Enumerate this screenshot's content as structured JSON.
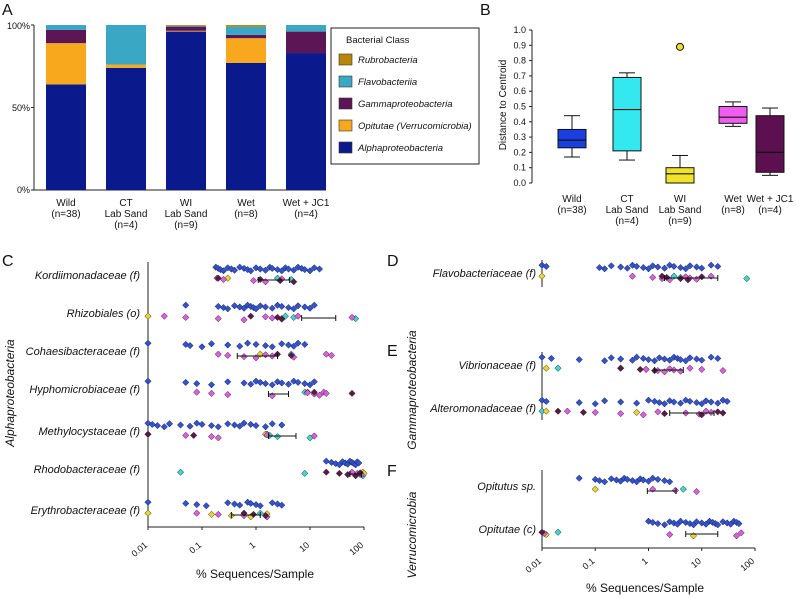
{
  "colors": {
    "Wild": "#1a3fe0",
    "CT Lab Sand": "#33e8ee",
    "WI Lab Sand": "#f2e22a",
    "Wet": "#f05cf0",
    "Wet + JC1": "#5c1050",
    "Rubrobacteria": "#b8860b",
    "Flavobacteriia": "#3aa8c4",
    "Gammaproteobacteria": "#5c1555",
    "Opitutae (Verrucomicrobia)": "#f8a81c",
    "Alphaproteobacteria": "#0a1a8c",
    "pointWild": "#2f52d8",
    "pointCT": "#3dd6d0",
    "pointWI": "#ecd628",
    "pointWet": "#e05ce0",
    "pointJC1": "#5a1a48"
  },
  "chart_data": [
    {
      "panel": "A",
      "type": "bar",
      "stacked": true,
      "categories": [
        "Wild\n(n=38)",
        "CT\nLab Sand\n(n=4)",
        "WI\nLab Sand\n(n=9)",
        "Wet\n(n=8)",
        "Wet + JC1\n(n=4)"
      ],
      "series": [
        {
          "name": "Alphaproteobacteria",
          "values": [
            64,
            74,
            96,
            77,
            83
          ]
        },
        {
          "name": "Opitutae (Verrucomicrobia)",
          "values": [
            25,
            2,
            0.5,
            15,
            0
          ]
        },
        {
          "name": "Gammaproteobacteria",
          "values": [
            8,
            0,
            2.5,
            2,
            13
          ]
        },
        {
          "name": "Flavobacteriia",
          "values": [
            3,
            24,
            0.5,
            5,
            4
          ]
        },
        {
          "name": "Rubrobacteria",
          "values": [
            0,
            0,
            0.5,
            1,
            0
          ]
        }
      ],
      "ylim": [
        0,
        100
      ],
      "yticks": [
        "0%",
        "50%",
        "100%"
      ],
      "legend_title": "Bacterial Class",
      "legend": [
        "Rubrobacteria",
        "Flavobacteriia",
        "Gammaproteobacteria",
        "Opitutae (Verrucomicrobia)",
        "Alphaproteobacteria"
      ],
      "legend_position": "right"
    },
    {
      "panel": "B",
      "type": "box",
      "ylabel": "Distance to Centroid",
      "ylim": [
        0,
        1.0
      ],
      "yticks": [
        "0.0",
        "0.1",
        "0.2",
        "0.3",
        "0.4",
        "0.5",
        "0.6",
        "0.7",
        "0.8",
        "0.9",
        "1.0"
      ],
      "categories": [
        "Wild\n(n=38)",
        "CT\nLab Sand\n(n=4)",
        "WI\nLab Sand\n(n=9)",
        "Wet\n(n=8)",
        "Wet + JC1\n(n=4)"
      ],
      "boxes": [
        {
          "min": 0.17,
          "q1": 0.23,
          "median": 0.28,
          "q3": 0.35,
          "max": 0.44,
          "outliers": []
        },
        {
          "min": 0.15,
          "q1": 0.21,
          "median": 0.48,
          "q3": 0.69,
          "max": 0.72,
          "outliers": []
        },
        {
          "min": 0.0,
          "q1": 0.0,
          "median": 0.06,
          "q3": 0.1,
          "max": 0.18,
          "outliers": [
            0.89
          ]
        },
        {
          "min": 0.37,
          "q1": 0.39,
          "median": 0.43,
          "q3": 0.5,
          "max": 0.53,
          "outliers": []
        },
        {
          "min": 0.05,
          "q1": 0.07,
          "median": 0.2,
          "q3": 0.44,
          "max": 0.49,
          "outliers": []
        }
      ]
    },
    {
      "panel": "C",
      "type": "scatter",
      "xscale": "log",
      "xlim": [
        0.01,
        100
      ],
      "xticks": [
        "0.01",
        "0.1",
        "1",
        "10",
        "100"
      ],
      "xlabel": "% Sequences/Sample",
      "side_label": "Alphaproteobacteria",
      "rows": [
        {
          "name": "Kordiimonadaceae (f)",
          "wild": [
            0.18,
            0.2,
            0.22,
            0.25,
            0.3,
            0.35,
            0.4,
            0.5,
            0.6,
            0.7,
            0.8,
            1,
            1.2,
            1.5,
            1.8,
            2,
            2.5,
            3,
            3.5,
            4,
            5,
            6,
            7,
            8,
            10,
            12,
            15
          ],
          "ct": [
            2.5,
            4.5
          ],
          "wi": [
            0.3
          ],
          "wet": [
            0.19,
            0.25,
            0.9,
            1.5,
            3
          ],
          "jc1": [
            0.2,
            1.2,
            2.8,
            5
          ],
          "errbar": [
            1.1,
            4.2
          ]
        },
        {
          "name": "Rhizobiales (o)",
          "wild": [
            0.05,
            0.2,
            0.25,
            0.3,
            0.4,
            0.5,
            0.6,
            0.7,
            0.8,
            0.9,
            1,
            1.2,
            1.5,
            2,
            2.5,
            3,
            4,
            5,
            6,
            8,
            10,
            12
          ],
          "ct": [
            3.5,
            5,
            70
          ],
          "wi": [
            0.01
          ],
          "wet": [
            0.02,
            0.05,
            0.2,
            0.6,
            1.5,
            2,
            3,
            6,
            60
          ],
          "jc1": [
            0.8,
            2.5,
            3
          ],
          "errbar": [
            7,
            30
          ]
        },
        {
          "name": "Cohaesibacteraceae (f)",
          "wild": [
            0.01,
            0.05,
            0.06,
            0.1,
            0.15,
            0.3,
            0.5,
            0.7,
            1,
            1.5,
            2,
            3,
            4,
            5,
            6,
            8
          ],
          "ct": [
            4.5
          ],
          "wi": [
            1.2
          ],
          "wet": [
            0.2,
            0.3,
            0.6,
            1,
            1.5,
            2,
            5,
            20,
            25
          ],
          "jc1": [
            2.5,
            4.5
          ],
          "errbar": [
            0.45,
            2.5
          ]
        },
        {
          "name": "Hyphomicrobiaceae (f)",
          "wild": [
            0.01,
            0.05,
            0.08,
            0.15,
            0.3,
            0.6,
            0.8,
            1,
            1.2,
            1.5,
            2,
            2.5,
            3,
            4,
            5,
            6,
            8,
            10,
            12
          ],
          "ct": [
            8
          ],
          "wi": [
            9
          ],
          "wet": [
            0.08,
            0.15,
            0.3,
            2,
            9,
            12,
            15,
            18,
            20
          ],
          "jc1": [
            12,
            60
          ],
          "errbar": [
            1.7,
            4
          ]
        },
        {
          "name": "Methylocystaceae (f)",
          "wild": [
            0.01,
            0.012,
            0.015,
            0.02,
            0.025,
            0.04,
            0.06,
            0.08,
            0.1,
            0.15,
            0.2,
            0.3,
            0.4,
            0.5,
            0.6,
            0.8,
            1,
            1.5,
            2,
            3
          ],
          "ct": [
            1.6,
            1.8,
            2.5,
            10
          ],
          "wi": [
            1.5
          ],
          "wet": [
            0.01,
            0.05,
            0.15,
            0.2,
            1.6,
            12
          ],
          "jc1": [
            0.01,
            0.07
          ],
          "errbar": [
            1.7,
            5.5
          ]
        },
        {
          "name": "Rhodobacteraceae (f)",
          "wild": [
            20,
            25,
            30,
            35,
            40,
            45,
            50,
            55,
            60,
            65,
            70,
            75,
            80
          ],
          "ct": [
            0.04,
            8,
            85,
            95
          ],
          "wi": [
            95,
            100
          ],
          "wet": [
            60,
            75,
            90
          ],
          "jc1": [
            20,
            35,
            50,
            70,
            85
          ],
          "errbar": [
            55,
            90
          ]
        },
        {
          "name": "Erythrobacteraceae (f)",
          "wild": [
            0.01,
            0.05,
            0.08,
            0.12,
            0.3,
            0.4,
            0.5,
            0.7,
            0.8,
            1,
            1.2,
            2,
            2.5,
            3
          ],
          "ct": [
            1.2
          ],
          "wi": [
            0.01,
            0.15,
            0.35,
            0.8,
            1.6
          ],
          "wet": [
            0.08,
            0.2,
            0.6,
            1.6
          ],
          "jc1": [
            0.6,
            0.9,
            1.5
          ],
          "errbar": [
            0.35,
            1.2
          ]
        }
      ]
    },
    {
      "panel": "D",
      "type": "scatter",
      "xscale": "log",
      "xlim": [
        0.01,
        100
      ],
      "side_label": "Gammaproteobacteria",
      "rows": [
        {
          "name": "Flavobacteriaceae (f)",
          "wild": [
            0.01,
            0.012,
            0.12,
            0.15,
            0.2,
            0.3,
            0.4,
            0.5,
            0.6,
            0.8,
            1,
            1.2,
            1.5,
            2,
            2.5,
            3,
            4,
            5,
            6,
            8,
            10,
            15,
            20
          ],
          "ct": [
            3,
            4,
            70
          ],
          "wi": [
            0.01
          ],
          "wet": [
            0.5,
            1.2,
            1.8,
            2.5,
            5,
            6,
            8,
            15
          ],
          "jc1": [
            1.8,
            2.2,
            4,
            5.5,
            10
          ],
          "errbar": [
            2,
            20
          ]
        }
      ]
    },
    {
      "panel": "E",
      "type": "scatter",
      "xscale": "log",
      "xlim": [
        0.01,
        100
      ],
      "side_label": "Gammaproteobacteria",
      "rows": [
        {
          "name": "Vibrionaceae (f)",
          "wild": [
            0.01,
            0.015,
            0.05,
            0.15,
            0.2,
            0.3,
            0.5,
            0.6,
            0.8,
            1,
            1.3,
            1.6,
            2,
            2.5,
            3,
            3.5,
            4,
            5,
            6,
            8,
            10,
            15,
            20
          ],
          "ct": [
            0.02
          ],
          "wi": [
            0.012,
            0.9
          ],
          "wet": [
            0.3,
            0.9,
            1.5,
            2,
            2.5,
            3,
            4,
            6,
            10,
            25
          ],
          "jc1": [
            0.3,
            0.7,
            1.3
          ],
          "errbar": [
            1.3,
            4.5
          ]
        },
        {
          "name": "Alteromonadaceae (f)",
          "wild": [
            0.01,
            0.012,
            0.05,
            0.1,
            0.15,
            0.3,
            0.6,
            1,
            1.3,
            1.6,
            2,
            2.5,
            3,
            4,
            5,
            6,
            8,
            10,
            12,
            15,
            20,
            25,
            30
          ],
          "ct": [
            0.01
          ],
          "wi": [
            0.012,
            0.6
          ],
          "wet": [
            0.03,
            0.1,
            0.3,
            0.8,
            1.5,
            5,
            9,
            12,
            15
          ],
          "jc1": [
            0.02,
            0.06,
            2,
            10,
            20,
            25
          ],
          "errbar": [
            2.5,
            17
          ]
        }
      ]
    },
    {
      "panel": "F",
      "type": "scatter",
      "xscale": "log",
      "xlim": [
        0.01,
        100
      ],
      "xticks": [
        "0.01",
        "0.1",
        "1",
        "10",
        "100"
      ],
      "xlabel": "% Sequences/Sample",
      "side_label": "Verrucomicrobia",
      "rows": [
        {
          "name": "Opitutus sp.",
          "wild": [
            0.05,
            0.1,
            0.12,
            0.15,
            0.2,
            0.25,
            0.3,
            0.35,
            0.4,
            0.5,
            0.6,
            0.7,
            0.8,
            1,
            1.2,
            1.5,
            2,
            2.5
          ],
          "ct": [
            4.5
          ],
          "wi": [
            0.1
          ],
          "wet": [
            1.2,
            3.2,
            8
          ],
          "jc1": [],
          "errbar": [
            0.95,
            3.3
          ]
        },
        {
          "name": "Opitutae (c)",
          "wild": [
            1,
            1.2,
            1.5,
            2,
            2.5,
            3,
            3.5,
            4,
            5,
            6,
            7,
            8,
            10,
            12,
            14,
            16,
            18,
            20,
            25,
            30,
            35,
            40,
            45,
            50
          ],
          "ct": [
            0.02
          ],
          "wi": [
            0.01,
            0.011,
            0.012,
            7
          ],
          "wet": [
            0.01,
            0.011,
            2.5,
            45,
            55
          ],
          "jc1": [
            0.01
          ],
          "errbar": [
            5,
            20
          ]
        }
      ]
    }
  ],
  "labels": {
    "A": "A",
    "B": "B",
    "C": "C",
    "D": "D",
    "E": "E",
    "F": "F",
    "a_y_100": "100%",
    "a_y_50": "50%",
    "a_y_0": "0%",
    "b_ylabel": "Distance to Centroid",
    "c_xlabel": "% Sequences/Sample",
    "f_xlabel": "% Sequences/Sample",
    "c_side": "Alphaproteobacteria",
    "de_side": "Gammaproteobacteria",
    "f_side": "Verrucomicrobia",
    "legend_title": "Bacterial Class"
  }
}
